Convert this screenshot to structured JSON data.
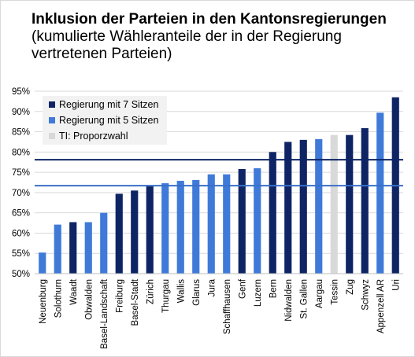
{
  "chart_data": {
    "type": "bar",
    "title": "Inklusion der Parteien in den Kantonsregierungen",
    "subtitle": "(kumulierte Wähleranteile der in der Regierung vertretenen Parteien)",
    "xlabel": "",
    "ylabel": "",
    "ylim": [
      0.5,
      0.95
    ],
    "yticks": [
      "50%",
      "55%",
      "60%",
      "65%",
      "70%",
      "75%",
      "80%",
      "85%",
      "90%",
      "95%"
    ],
    "grid": true,
    "legend_position": "top-left",
    "categories": [
      "Neuenburg",
      "Solothurn",
      "Waadt",
      "Obwalden",
      "Basel-Landschaft",
      "Freiburg",
      "Basel-Stadt",
      "Zürich",
      "Thurgau",
      "Wallis",
      "Glarus",
      "Jura",
      "Schaffhausen",
      "Genf",
      "Luzern",
      "Bern",
      "Nidwalden",
      "St. Gallen",
      "Aargau",
      "Tessin",
      "Zug",
      "Schwyz",
      "Appenzell AR",
      "Uri"
    ],
    "values": [
      0.552,
      0.621,
      0.627,
      0.627,
      0.65,
      0.697,
      0.705,
      0.716,
      0.723,
      0.729,
      0.731,
      0.745,
      0.745,
      0.758,
      0.76,
      0.8,
      0.825,
      0.83,
      0.832,
      0.842,
      0.842,
      0.859,
      0.897,
      0.935
    ],
    "groups": [
      "5",
      "5",
      "7",
      "5",
      "5",
      "7",
      "7",
      "7",
      "5",
      "5",
      "5",
      "5",
      "5",
      "7",
      "5",
      "7",
      "7",
      "7",
      "5",
      "TI",
      "7",
      "7",
      "5",
      "7"
    ],
    "series": [
      {
        "key": "7",
        "name": "Regierung mit 7 Sitzen",
        "color": "#0e2464"
      },
      {
        "key": "5",
        "name": "Regierung mit 5 Sitzen",
        "color": "#3f7ad9"
      },
      {
        "key": "TI",
        "name": "TI: Proporzwahl",
        "color": "#d9d9d9"
      }
    ],
    "reference_lines": [
      {
        "value": 0.781,
        "color": "#0e2464"
      },
      {
        "value": 0.717,
        "color": "#3a6fc8"
      }
    ]
  }
}
